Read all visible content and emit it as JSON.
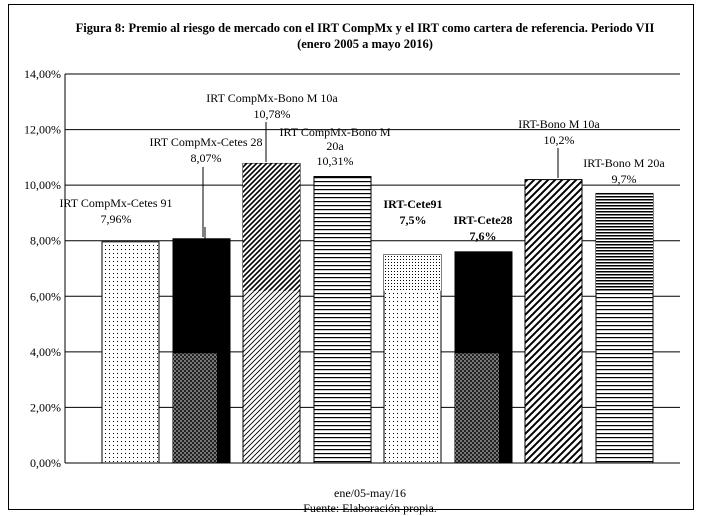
{
  "chart_data": {
    "type": "bar",
    "title": "Figura 8: Premio al riesgo de mercado con el IRT CompMx  y el IRT como cartera de referencia. Periodo VII (enero 2005 a mayo 2016)",
    "xlabel": "ene/05-may/16",
    "source": "Fuente: Elaboración propia.",
    "ylim": [
      0,
      14
    ],
    "yticks": [
      "0,00%",
      "2,00%",
      "4,00%",
      "6,00%",
      "8,00%",
      "10,00%",
      "12,00%",
      "14,00%"
    ],
    "grid": true,
    "series": [
      {
        "name": "IRT CompMx-Cetes 91",
        "value": 7.96,
        "label": "7,96%",
        "pattern": "dots"
      },
      {
        "name": "IRT CompMx-Cetes 28",
        "value": 8.07,
        "label": "8,07%",
        "pattern": "black"
      },
      {
        "name": "IRT CompMx-Bono M 10a",
        "value": 10.78,
        "label": "10,78%",
        "pattern": "diag"
      },
      {
        "name": "IRT CompMx-Bono M 20a",
        "value": 10.31,
        "label": "10,31%",
        "pattern": "horiz"
      },
      {
        "name": "IRT-Cete91",
        "value": 7.5,
        "label": "7,5%",
        "pattern": "dots"
      },
      {
        "name": "IRT-Cete28",
        "value": 7.6,
        "label": "7,6%",
        "pattern": "black"
      },
      {
        "name": "IRT-Bono M 10a",
        "value": 10.2,
        "label": "10,2%",
        "pattern": "wdiag"
      },
      {
        "name": "IRT-Bono M 20a",
        "value": 9.7,
        "label": "9,7%",
        "pattern": "horizdense"
      }
    ]
  }
}
